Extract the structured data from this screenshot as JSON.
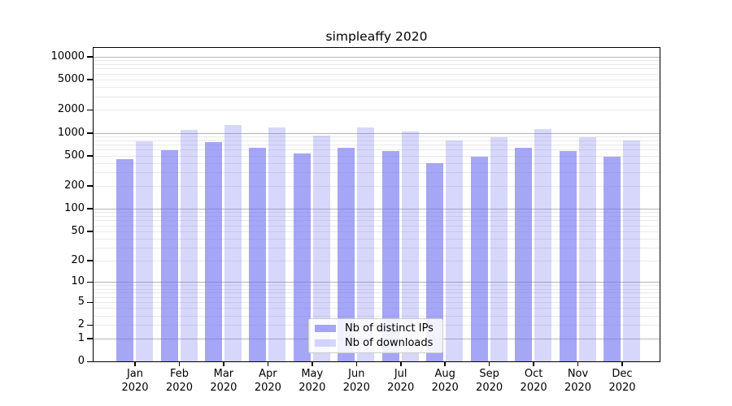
{
  "chart_data": {
    "type": "bar",
    "title": "simpleaffy 2020",
    "categories": [
      "Jan",
      "Feb",
      "Mar",
      "Apr",
      "May",
      "Jun",
      "Jul",
      "Aug",
      "Sep",
      "Oct",
      "Nov",
      "Dec"
    ],
    "year_label": "2020",
    "series": [
      {
        "name": "Nb of distinct IPs",
        "color": "rgba(112,112,240,0.62)",
        "values": [
          450,
          590,
          750,
          630,
          540,
          630,
          580,
          400,
          485,
          630,
          580,
          490
        ]
      },
      {
        "name": "Nb of downloads",
        "color": "rgba(112,112,240,0.28)",
        "values": [
          780,
          1100,
          1260,
          1160,
          920,
          1180,
          1030,
          790,
          880,
          1120,
          880,
          800
        ]
      }
    ],
    "xlabel": "",
    "ylabel": "",
    "y_ticks": [
      0,
      1,
      2,
      5,
      10,
      20,
      50,
      100,
      200,
      500,
      1000,
      2000,
      5000,
      10000
    ],
    "scale": "log1p",
    "ylim": [
      0,
      13000
    ],
    "grid": {
      "major": "on",
      "minor": "on"
    },
    "legend_position": "lower center inside",
    "colors": {
      "major_grid": "#b5b5b5",
      "minor_grid": "#e9e9e9",
      "spine": "#000000",
      "text": "#000000",
      "legend_border": "#cccccc",
      "legend_bg": "rgba(255,255,255,0.85)"
    }
  }
}
